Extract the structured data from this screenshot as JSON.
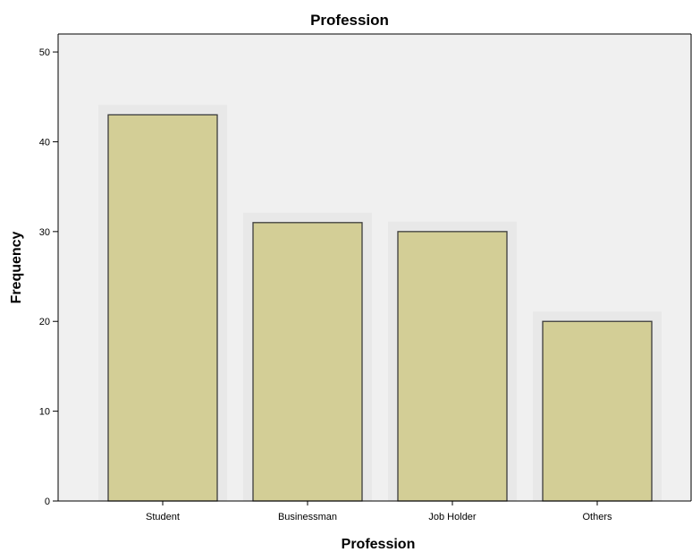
{
  "chart_data": {
    "type": "bar",
    "title": "Profession",
    "xlabel": "Profession",
    "ylabel": "Frequency",
    "categories": [
      "Student",
      "Businessman",
      "Job Holder",
      "Others"
    ],
    "values": [
      43,
      31,
      30,
      20
    ],
    "ylim": [
      0,
      52
    ],
    "yticks": [
      0,
      10,
      20,
      30,
      40,
      50
    ],
    "grid": false,
    "legend": "none",
    "colors": {
      "bar_fill": "#d3ce96",
      "bar_stroke": "#3c3c3c",
      "plot_background": "#f0f0f0",
      "axis": "#000000"
    }
  }
}
